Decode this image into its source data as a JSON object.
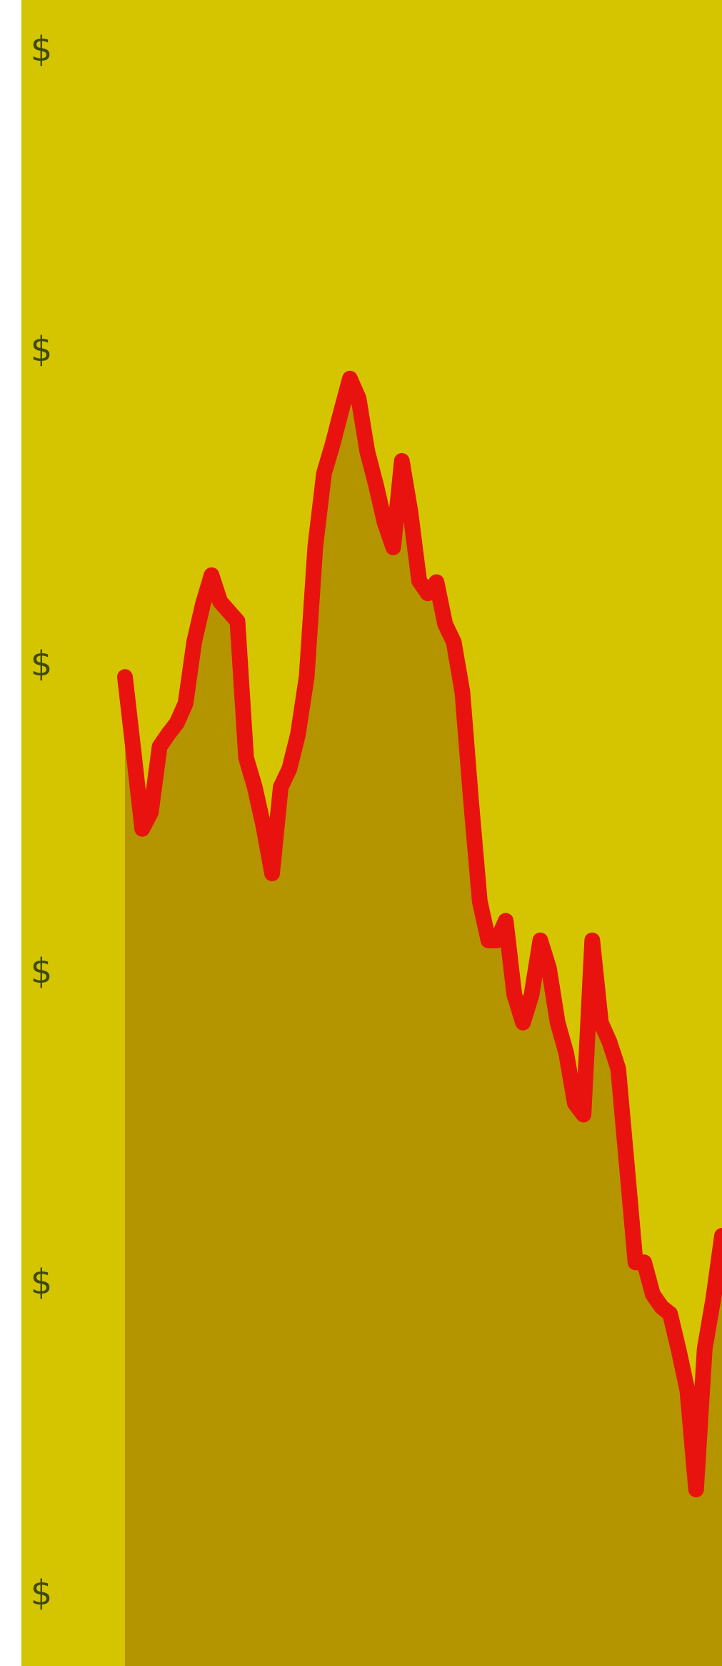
{
  "chart_data": {
    "type": "area",
    "title": "",
    "xlabel": "",
    "ylabel": "",
    "y_tick_labels": [
      "$",
      "$",
      "$",
      "$",
      "$",
      "$"
    ],
    "ylim": [
      0,
      100
    ],
    "grid": false,
    "colors": {
      "background": "#d4c500",
      "line": "#e8120e",
      "fill": "#b08f00",
      "tick_text": "#3f4a12"
    },
    "series": [
      {
        "values": [
          66.3,
          60.9,
          55.4,
          56.6,
          61.3,
          62.2,
          63.0,
          64.4,
          68.8,
          71.5,
          73.6,
          71.7,
          71.0,
          70.3,
          60.5,
          58.4,
          55.6,
          52.2,
          58.4,
          59.7,
          62.2,
          66.3,
          75.7,
          80.9,
          83.0,
          85.4,
          87.7,
          86.3,
          82.5,
          80.1,
          77.4,
          75.6,
          81.8,
          78.1,
          73.2,
          72.3,
          73.1,
          70.1,
          68.8,
          65.2,
          57.4,
          50.2,
          47.4,
          47.4,
          48.8,
          43.5,
          41.5,
          43.5,
          47.4,
          45.4,
          41.5,
          39.3,
          35.7,
          34.9,
          47.4,
          41.5,
          40.1,
          38.2,
          31.3,
          24.3,
          24.3,
          22.0,
          21.1,
          20.6,
          18.0,
          15.1,
          8.0,
          18.1,
          21.7,
          26.2
        ]
      }
    ]
  }
}
